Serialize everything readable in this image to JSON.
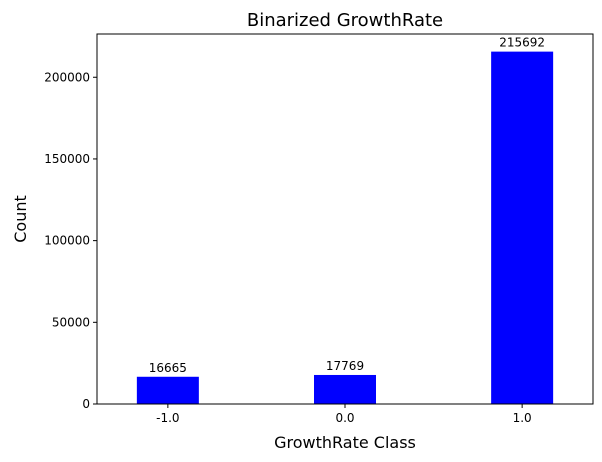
{
  "chart_data": {
    "type": "bar",
    "title": "Binarized GrowthRate",
    "xlabel": "GrowthRate Class",
    "ylabel": "Count",
    "categories": [
      "-1.0",
      "0.0",
      "1.0"
    ],
    "values": [
      16665,
      17769,
      215692
    ],
    "data_labels": [
      "16665",
      "17769",
      "215692"
    ],
    "ylim": [
      0,
      226477
    ],
    "yticks": [
      0,
      50000,
      100000,
      150000,
      200000
    ],
    "ytick_labels": [
      "0",
      "50000",
      "100000",
      "150000",
      "200000"
    ],
    "bar_color": "#0000ff",
    "grid": false,
    "legend": "none"
  }
}
